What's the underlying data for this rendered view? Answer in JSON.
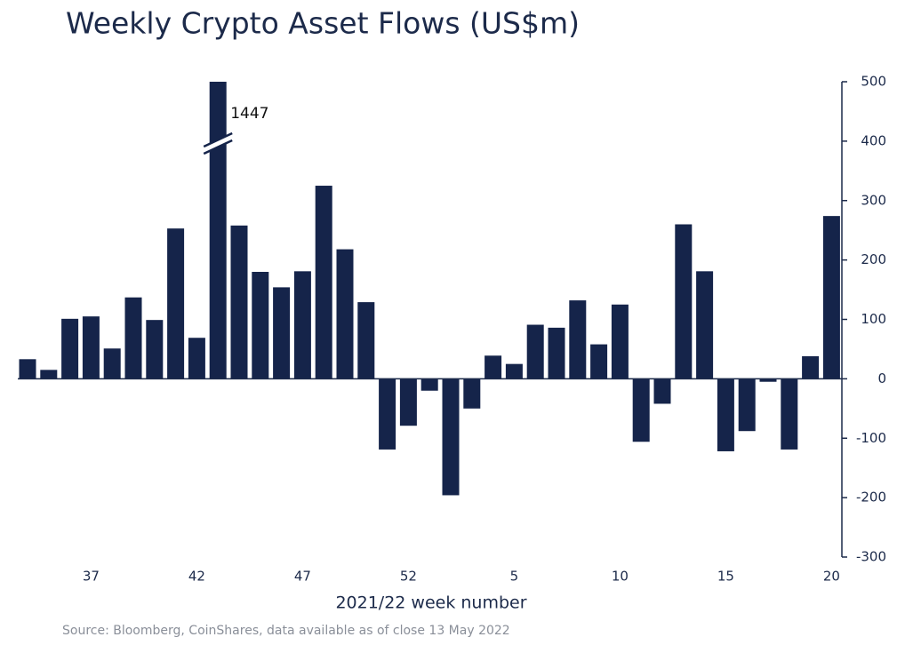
{
  "chart_data": {
    "type": "bar",
    "title": "Weekly Crypto Asset Flows (US$m)",
    "x_label": "2021/22 week number",
    "source": "Source: Bloomberg, CoinShares, data available as of close 13 May 2022",
    "categories": [
      null,
      null,
      null,
      "37",
      null,
      null,
      null,
      null,
      "42",
      null,
      null,
      null,
      null,
      "47",
      null,
      null,
      null,
      null,
      "52",
      null,
      null,
      null,
      null,
      "5",
      null,
      null,
      null,
      null,
      "10",
      null,
      null,
      null,
      null,
      "15",
      null,
      null,
      null,
      null,
      "20"
    ],
    "values": [
      33,
      15,
      101,
      105,
      51,
      137,
      99,
      253,
      69,
      1447,
      258,
      180,
      154,
      181,
      325,
      218,
      129,
      -119,
      -79,
      -20,
      -196,
      -50,
      39,
      25,
      91,
      86,
      132,
      58,
      125,
      -106,
      -42,
      260,
      181,
      -122,
      -88,
      -5,
      -119,
      38,
      274
    ],
    "color": "#15244a",
    "ylim": [
      -300,
      500
    ],
    "yticks": [
      500,
      400,
      300,
      200,
      100,
      0,
      -100,
      -200,
      -300
    ],
    "y_axis_side": "right"
  }
}
